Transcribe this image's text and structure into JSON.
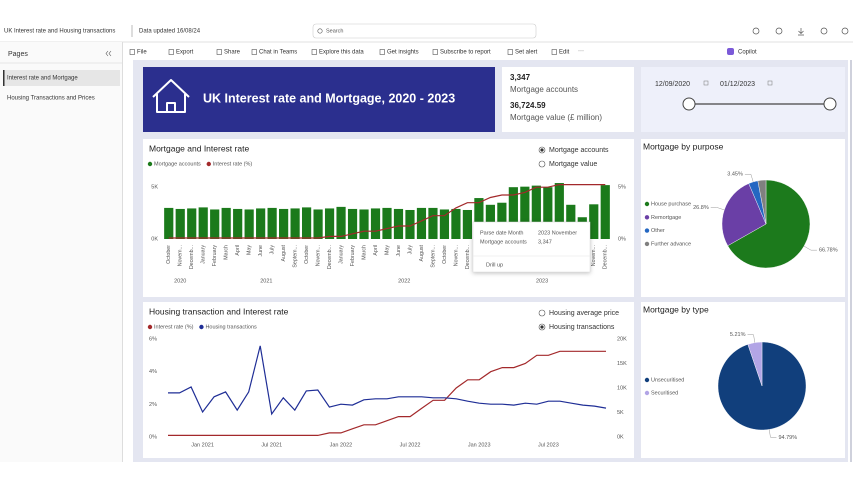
{
  "topbar": {
    "report_title": "UK Interest rate and Housing transactions",
    "data_updated": "Data updated 16/08/24",
    "search": "Search"
  },
  "toolbar": {
    "items": [
      "File",
      "Export",
      "Share",
      "Chat in Teams",
      "Explore this data",
      "Get insights",
      "Subscribe to report",
      "Set alert",
      "Edit"
    ],
    "copilot": "Copilot"
  },
  "sidebar": {
    "heading": "Pages",
    "pages": [
      "Interest rate and Mortgage",
      "Housing Transactions and Prices"
    ]
  },
  "header_card": {
    "title": "UK Interest rate and Mortgage, 2020 - 2023"
  },
  "kpi": {
    "mortgage_accounts": "3,347",
    "mortgage_accounts_label": "Mortgage accounts",
    "mortgage_value": "36,724.59",
    "mortgage_value_label": "Mortgage value (£ million)"
  },
  "date_slicer": {
    "start": "12/09/2020",
    "end": "01/12/2023"
  },
  "chart_data": [
    {
      "type": "bar_line",
      "title": "Mortgage and Interest rate",
      "options": [
        "Mortgage accounts",
        "Mortgage value"
      ],
      "selected_option": 0,
      "categories": [
        "October",
        "Novem...",
        "Decemb...",
        "January",
        "February",
        "March",
        "April",
        "May",
        "June",
        "July",
        "August",
        "Septem...",
        "October",
        "Novem...",
        "Decemb...",
        "January",
        "February",
        "March",
        "April",
        "May",
        "June",
        "July",
        "August",
        "Septem...",
        "October",
        "Novem...",
        "Decemb...",
        "January",
        "February",
        "March",
        "April",
        "May",
        "June",
        "July",
        "August",
        "Septem...",
        "October",
        "Novem...",
        "Decemb..."
      ],
      "year_labels": [
        "2020",
        "2021",
        "2022",
        "2023"
      ],
      "series": [
        {
          "name": "Mortgage accounts",
          "color": "#1b7a1b",
          "values": [
            3000,
            2900,
            2950,
            3050,
            2850,
            3000,
            2900,
            2850,
            2950,
            3000,
            2900,
            2950,
            3050,
            2850,
            2950,
            3100,
            2900,
            2850,
            2950,
            3000,
            2900,
            2800,
            3000,
            3000,
            2850,
            2900,
            2800,
            3950,
            3300,
            3500,
            5000,
            5050,
            5150,
            5000,
            5400,
            3300,
            2100,
            3347,
            5200
          ]
        },
        {
          "name": "Interest rate (%)",
          "color": "#a3292b",
          "axis": "y2",
          "values": [
            0.1,
            0.1,
            0.1,
            0.1,
            0.1,
            0.1,
            0.1,
            0.1,
            0.1,
            0.1,
            0.1,
            0.1,
            0.1,
            0.1,
            0.25,
            0.25,
            0.5,
            0.75,
            0.75,
            1.0,
            1.25,
            1.25,
            1.75,
            2.25,
            2.25,
            3.0,
            3.5,
            3.5,
            4.0,
            4.25,
            4.25,
            4.5,
            5.0,
            5.0,
            5.25,
            5.25,
            5.25,
            5.25,
            5.25
          ]
        }
      ],
      "ylim": [
        0,
        5500
      ],
      "yticks": [
        {
          "value": 0,
          "label": "0K"
        },
        {
          "value": 5000,
          "label": "5K"
        }
      ],
      "y2lim": [
        0,
        5.5
      ],
      "y2ticks": [
        {
          "value": 0,
          "label": "0%"
        },
        {
          "value": 5,
          "label": "5%"
        }
      ],
      "tooltip": {
        "field1": "Parse date Month",
        "value1": "2023 November",
        "field2": "Mortgage accounts",
        "value2": "3,347",
        "action": "Drill up"
      }
    },
    {
      "type": "pie",
      "title": "Mortgage by purpose",
      "categories": [
        "House purchase",
        "Remortgage",
        "Other",
        "Further advance"
      ],
      "values": [
        66.78,
        26.8,
        3.45,
        2.97
      ],
      "value_labels": [
        "66.78%",
        "26.8%",
        "3.45%",
        null
      ],
      "colors": [
        "#1c7a1c",
        "#6a3fa6",
        "#2467c2",
        "#808080"
      ]
    },
    {
      "type": "line",
      "title": "Housing transaction and Interest rate",
      "options": [
        "Housing average price",
        "Housing transactions"
      ],
      "selected_option": 1,
      "categories": [
        null,
        null,
        null,
        "Jan 2021",
        null,
        null,
        null,
        null,
        null,
        "Jul 2021",
        null,
        null,
        null,
        null,
        null,
        "Jan 2022",
        null,
        null,
        null,
        null,
        null,
        "Jul 2022",
        null,
        null,
        null,
        null,
        null,
        "Jan 2023",
        null,
        null,
        null,
        null,
        null,
        "Jul 2023",
        null,
        null,
        null,
        null,
        null
      ],
      "series": [
        {
          "name": "Interest rate (%)",
          "color": "#a3292b",
          "values": [
            0.1,
            0.1,
            0.1,
            0.1,
            0.1,
            0.1,
            0.1,
            0.1,
            0.1,
            0.1,
            0.1,
            0.1,
            0.1,
            0.1,
            0.25,
            0.25,
            0.5,
            0.75,
            0.75,
            1.0,
            1.25,
            1.25,
            1.75,
            2.25,
            2.25,
            3.0,
            3.5,
            3.5,
            4.0,
            4.25,
            4.25,
            4.5,
            5.0,
            5.0,
            5.25,
            5.25,
            5.25,
            5.25,
            5.25
          ]
        },
        {
          "name": "Housing transactions",
          "color": "#1f2e96",
          "axis": "y2",
          "values": [
            9000,
            9000,
            10200,
            5100,
            8200,
            9200,
            5500,
            9200,
            18600,
            4700,
            8000,
            5500,
            9400,
            9600,
            6100,
            6700,
            6500,
            7600,
            7800,
            7800,
            8200,
            8200,
            8200,
            8000,
            8000,
            7800,
            7300,
            6900,
            6700,
            6700,
            6500,
            6900,
            6700,
            7300,
            7300,
            6900,
            6500,
            6300,
            5900
          ]
        }
      ],
      "ylim": [
        0,
        6
      ],
      "yticks": [
        {
          "value": 0,
          "label": "0%"
        },
        {
          "value": 2,
          "label": "2%"
        },
        {
          "value": 4,
          "label": "4%"
        },
        {
          "value": 6,
          "label": "6%"
        }
      ],
      "y2lim": [
        0,
        20000
      ],
      "y2ticks": [
        {
          "value": 0,
          "label": "0K"
        },
        {
          "value": 5000,
          "label": "5K"
        },
        {
          "value": 10000,
          "label": "10K"
        },
        {
          "value": 15000,
          "label": "15K"
        },
        {
          "value": 20000,
          "label": "20K"
        }
      ]
    },
    {
      "type": "pie",
      "title": "Mortgage by type",
      "categories": [
        "Unsecuritised",
        "Securitised"
      ],
      "values": [
        94.79,
        5.21
      ],
      "value_labels": [
        "94.79%",
        "5.21%"
      ],
      "colors": [
        "#113f7c",
        "#b2a5e6"
      ]
    }
  ]
}
